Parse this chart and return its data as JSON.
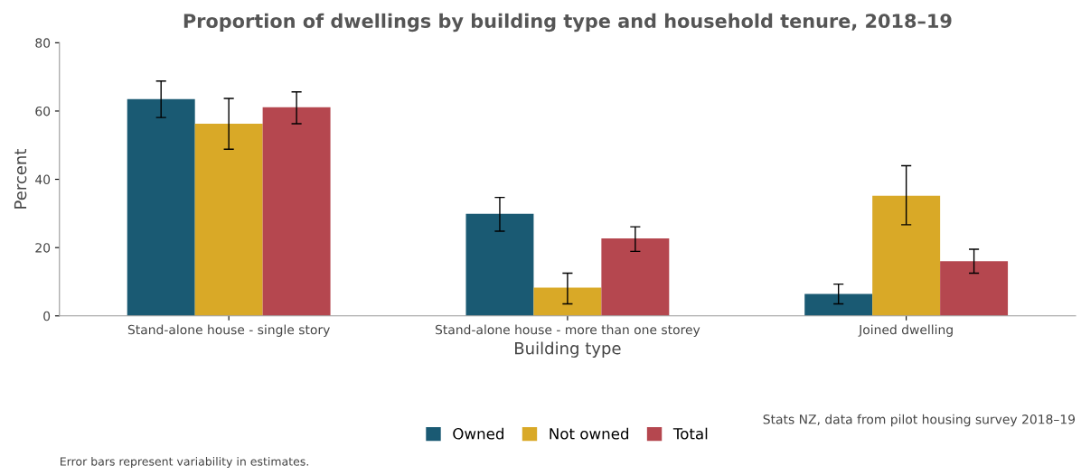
{
  "chart_data": {
    "type": "bar",
    "title": "Proportion of dwellings by building type and household tenure, 2018–19",
    "xlabel": "Building type",
    "ylabel": "Percent",
    "categories": [
      "Stand-alone house - single story",
      "Stand-alone house - more than one storey",
      "Joined dwelling"
    ],
    "series": [
      {
        "name": "Owned",
        "color": "#1a5a73",
        "values": [
          63.5,
          29.9,
          6.4
        ],
        "errors": [
          [
            58.1,
            68.8
          ],
          [
            24.8,
            34.7
          ],
          [
            3.5,
            9.3
          ]
        ]
      },
      {
        "name": "Not owned",
        "color": "#d9a927",
        "values": [
          56.3,
          8.3,
          35.2
        ],
        "errors": [
          [
            48.8,
            63.7
          ],
          [
            3.5,
            12.5
          ],
          [
            26.7,
            44.0
          ]
        ]
      },
      {
        "name": "Total",
        "color": "#b5474f",
        "values": [
          61.1,
          22.7,
          16.0
        ],
        "errors": [
          [
            56.3,
            65.6
          ],
          [
            18.9,
            26.1
          ],
          [
            12.5,
            19.5
          ]
        ]
      }
    ],
    "ylim": [
      0,
      80
    ],
    "yticks": [
      0,
      20,
      40,
      60,
      80
    ],
    "grid": false,
    "legend": "bottom",
    "annotations": [
      "Stats NZ, data from pilot housing survey 2018–19",
      "Error bars represent variability in estimates."
    ]
  }
}
